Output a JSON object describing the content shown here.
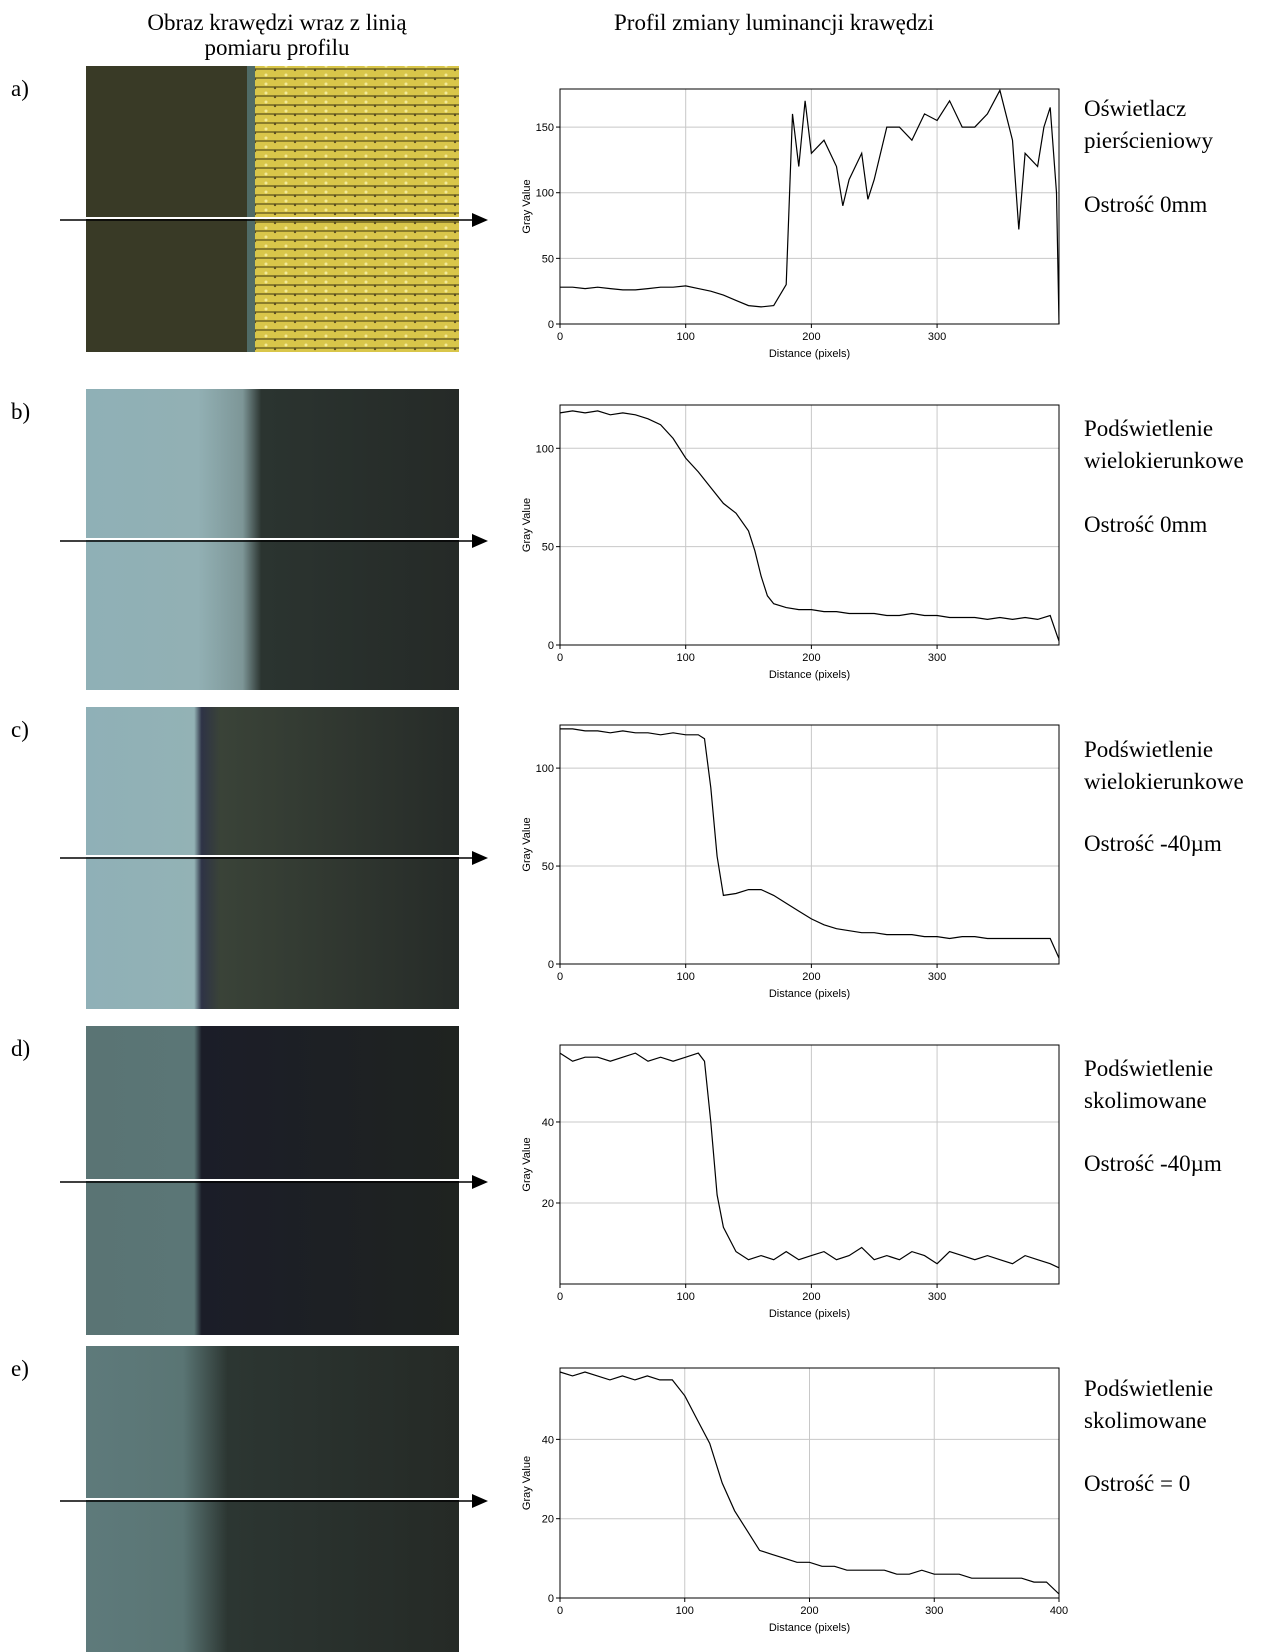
{
  "headers": {
    "left": [
      "Obraz krawędzi wraz z linią",
      "pomiaru profilu"
    ],
    "right": "Profil zmiany luminancji krawędzi"
  },
  "panels": [
    {
      "label": "a)",
      "caption": [
        "Oświetlacz",
        "pierścieniowy",
        "Ostrość 0mm"
      ]
    },
    {
      "label": "b)",
      "caption": [
        "Podświetlenie",
        "wielokierunkowe",
        "Ostrość 0mm"
      ]
    },
    {
      "label": "c)",
      "caption": [
        "Podświetlenie",
        "wielokierunkowe",
        "Ostrość -40µm"
      ]
    },
    {
      "label": "d)",
      "caption": [
        "Podświetlenie",
        "skolimowane",
        "Ostrość -40µm"
      ]
    },
    {
      "label": "e)",
      "caption": [
        "Podświetlenie",
        "skolimowane",
        "Ostrość = 0"
      ]
    }
  ],
  "chart_data": [
    {
      "type": "line",
      "x_label": "Distance (pixels)",
      "y_label": "Gray Value",
      "xlim": [
        0,
        397
      ],
      "ylim": [
        0,
        179
      ],
      "xticks": [
        0,
        100,
        200,
        300
      ],
      "yticks": [
        0,
        50,
        100,
        150
      ],
      "grid": true,
      "x": [
        0,
        10,
        20,
        30,
        40,
        50,
        60,
        70,
        80,
        90,
        100,
        110,
        120,
        130,
        140,
        150,
        160,
        170,
        180,
        185,
        190,
        195,
        200,
        210,
        220,
        225,
        230,
        240,
        245,
        250,
        260,
        270,
        280,
        290,
        300,
        310,
        320,
        330,
        340,
        350,
        360,
        365,
        370,
        380,
        385,
        390,
        395,
        397
      ],
      "series": [
        {
          "color": "#000000",
          "values": [
            28,
            28,
            27,
            28,
            27,
            26,
            26,
            27,
            28,
            28,
            29,
            27,
            25,
            22,
            18,
            14,
            13,
            14,
            30,
            160,
            120,
            170,
            130,
            140,
            120,
            90,
            110,
            130,
            95,
            110,
            150,
            150,
            140,
            160,
            155,
            170,
            150,
            150,
            160,
            178,
            140,
            72,
            130,
            120,
            150,
            165,
            100,
            0
          ]
        }
      ]
    },
    {
      "type": "line",
      "x_label": "Distance (pixels)",
      "y_label": "Gray Value",
      "xlim": [
        0,
        397
      ],
      "ylim": [
        0,
        122
      ],
      "xticks": [
        0,
        100,
        200,
        300
      ],
      "yticks": [
        0,
        50,
        100
      ],
      "grid": true,
      "x": [
        0,
        10,
        20,
        30,
        40,
        50,
        60,
        70,
        80,
        90,
        100,
        110,
        120,
        130,
        140,
        150,
        155,
        160,
        165,
        170,
        180,
        190,
        200,
        210,
        220,
        230,
        240,
        250,
        260,
        270,
        280,
        290,
        300,
        310,
        320,
        330,
        340,
        350,
        360,
        370,
        380,
        390,
        397
      ],
      "series": [
        {
          "color": "#000000",
          "values": [
            118,
            119,
            118,
            119,
            117,
            118,
            117,
            115,
            112,
            105,
            95,
            88,
            80,
            72,
            67,
            58,
            48,
            35,
            25,
            21,
            19,
            18,
            18,
            17,
            17,
            16,
            16,
            16,
            15,
            15,
            16,
            15,
            15,
            14,
            14,
            14,
            13,
            14,
            13,
            14,
            13,
            15,
            2
          ]
        }
      ]
    },
    {
      "type": "line",
      "x_label": "Distance (pixels)",
      "y_label": "Gray Value",
      "xlim": [
        0,
        397
      ],
      "ylim": [
        0,
        122
      ],
      "xticks": [
        0,
        100,
        200,
        300
      ],
      "yticks": [
        0,
        50,
        100
      ],
      "grid": true,
      "x": [
        0,
        10,
        20,
        30,
        40,
        50,
        60,
        70,
        80,
        90,
        100,
        110,
        115,
        120,
        125,
        130,
        140,
        150,
        160,
        170,
        180,
        190,
        200,
        210,
        220,
        230,
        240,
        250,
        260,
        270,
        280,
        290,
        300,
        310,
        320,
        330,
        340,
        350,
        360,
        370,
        380,
        390,
        397
      ],
      "series": [
        {
          "color": "#000000",
          "values": [
            120,
            120,
            119,
            119,
            118,
            119,
            118,
            118,
            117,
            118,
            117,
            117,
            115,
            90,
            55,
            35,
            36,
            38,
            38,
            35,
            31,
            27,
            23,
            20,
            18,
            17,
            16,
            16,
            15,
            15,
            15,
            14,
            14,
            13,
            14,
            14,
            13,
            13,
            13,
            13,
            13,
            13,
            3
          ]
        }
      ]
    },
    {
      "type": "line",
      "x_label": "Distance (pixels)",
      "y_label": "Gray Value",
      "xlim": [
        0,
        397
      ],
      "ylim": [
        0,
        59
      ],
      "xticks": [
        0,
        100,
        200,
        300
      ],
      "yticks": [
        20,
        40
      ],
      "grid": true,
      "x": [
        0,
        10,
        20,
        30,
        40,
        50,
        60,
        70,
        80,
        90,
        100,
        110,
        115,
        120,
        125,
        130,
        140,
        150,
        160,
        170,
        180,
        190,
        200,
        210,
        220,
        230,
        240,
        250,
        260,
        270,
        280,
        290,
        300,
        310,
        320,
        330,
        340,
        350,
        360,
        370,
        380,
        390,
        397
      ],
      "series": [
        {
          "color": "#000000",
          "values": [
            57,
            55,
            56,
            56,
            55,
            56,
            57,
            55,
            56,
            55,
            56,
            57,
            55,
            40,
            22,
            14,
            8,
            6,
            7,
            6,
            8,
            6,
            7,
            8,
            6,
            7,
            9,
            6,
            7,
            6,
            8,
            7,
            5,
            8,
            7,
            6,
            7,
            6,
            5,
            7,
            6,
            5,
            4
          ]
        }
      ]
    },
    {
      "type": "line",
      "x_label": "Distance (pixels)",
      "y_label": "Gray Value",
      "xlim": [
        0,
        400
      ],
      "ylim": [
        0,
        58
      ],
      "xticks": [
        0,
        100,
        200,
        300,
        400
      ],
      "yticks": [
        0,
        20,
        40
      ],
      "grid": true,
      "x": [
        0,
        10,
        20,
        30,
        40,
        50,
        60,
        70,
        80,
        90,
        100,
        110,
        120,
        130,
        140,
        150,
        160,
        170,
        180,
        190,
        200,
        210,
        220,
        230,
        240,
        250,
        260,
        270,
        280,
        290,
        300,
        310,
        320,
        330,
        340,
        350,
        360,
        370,
        380,
        390,
        400
      ],
      "series": [
        {
          "color": "#000000",
          "values": [
            57,
            56,
            57,
            56,
            55,
            56,
            55,
            56,
            55,
            55,
            51,
            45,
            39,
            29,
            22,
            17,
            12,
            11,
            10,
            9,
            9,
            8,
            8,
            7,
            7,
            7,
            7,
            6,
            6,
            7,
            6,
            6,
            6,
            5,
            5,
            5,
            5,
            5,
            4,
            4,
            1
          ]
        }
      ]
    }
  ]
}
